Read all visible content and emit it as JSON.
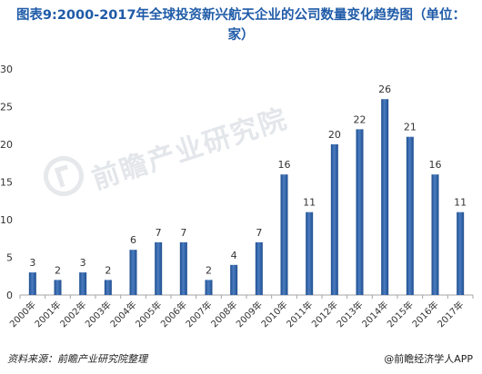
{
  "title": "图表9:2000-2017年全球投资新兴航天企业的公司数量变化趋势图（单位：家）",
  "watermark_text": "前瞻产业研究院",
  "footer": {
    "source": "资料来源：前瞻产业研究院整理",
    "brand": "@前瞻经济学人APP"
  },
  "colors": {
    "bar": "#1f4e8f",
    "bar_highlight": "#4a7cc0",
    "title": "#1f5ba8",
    "axis": "#a6a6a6",
    "text": "#333333"
  },
  "chart_data": {
    "type": "bar",
    "title": "图表9:2000-2017年全球投资新兴航天企业的公司数量变化趋势图（单位：家）",
    "categories": [
      "2000年",
      "2001年",
      "2002年",
      "2003年",
      "2004年",
      "2005年",
      "2006年",
      "2007年",
      "2008年",
      "2009年",
      "2010年",
      "2011年",
      "2012年",
      "2013年",
      "2014年",
      "2015年",
      "2016年",
      "2017年"
    ],
    "values": [
      3,
      2,
      3,
      2,
      6,
      7,
      7,
      2,
      4,
      7,
      16,
      11,
      20,
      22,
      26,
      21,
      16,
      11
    ],
    "xlabel": "",
    "ylabel": "",
    "ylim": [
      0,
      30
    ],
    "yticks": [
      0,
      5,
      10,
      15,
      20,
      25,
      30
    ],
    "grid": false,
    "data_labels": true
  }
}
